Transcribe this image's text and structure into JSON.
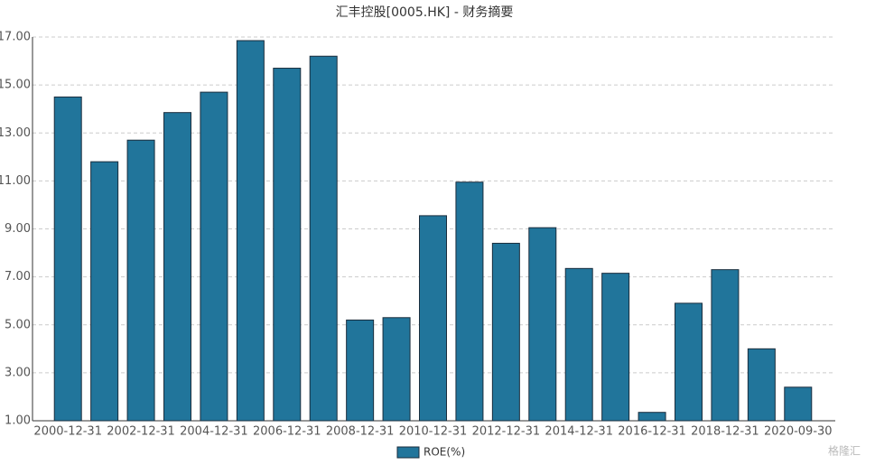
{
  "chart_data": {
    "type": "bar",
    "title": "汇丰控股[0005.HK] - 财务摘要",
    "categories": [
      "2000-12-31",
      null,
      "2002-12-31",
      null,
      "2004-12-31",
      null,
      "2006-12-31",
      null,
      "2008-12-31",
      null,
      "2010-12-31",
      null,
      "2012-12-31",
      null,
      "2014-12-31",
      null,
      "2016-12-31",
      null,
      "2018-12-31",
      null,
      "2020-09-30"
    ],
    "series": [
      {
        "name": "ROE(%)",
        "color": "#21759b",
        "values": [
          14.5,
          11.8,
          12.7,
          13.85,
          14.7,
          16.85,
          15.7,
          16.2,
          5.2,
          5.3,
          9.55,
          10.95,
          8.4,
          9.05,
          7.35,
          7.15,
          1.35,
          5.9,
          7.3,
          4.0,
          2.4
        ]
      }
    ],
    "ylim": [
      1,
      17
    ],
    "yticks": [
      {
        "value": 1,
        "label": "1.00"
      },
      {
        "value": 3,
        "label": "3.00"
      },
      {
        "value": 5,
        "label": "5.00"
      },
      {
        "value": 7,
        "label": "7.00"
      },
      {
        "value": 9,
        "label": "9.00"
      },
      {
        "value": 11,
        "label": "11.00"
      },
      {
        "value": 13,
        "label": "13.00"
      },
      {
        "value": 15,
        "label": "15.00"
      },
      {
        "value": 17,
        "label": "17.00"
      }
    ],
    "grid": true,
    "legend": "bottom",
    "watermark": "格隆汇"
  }
}
